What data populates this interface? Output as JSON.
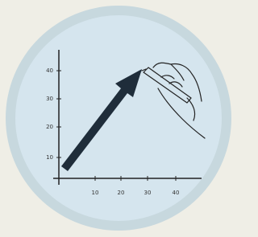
{
  "illustration": {
    "y_labels": [
      "10",
      "20",
      "30",
      "40"
    ],
    "x_labels": [
      "10",
      "20",
      "30",
      "40"
    ]
  }
}
